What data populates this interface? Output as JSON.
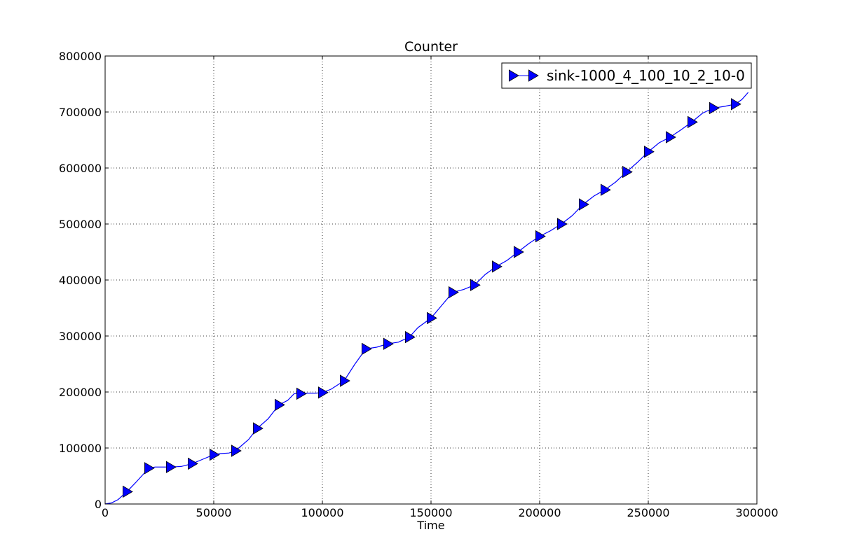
{
  "chart_data": {
    "type": "line",
    "title": "Counter",
    "xlabel": "Time",
    "ylabel": "",
    "xlim": [
      0,
      300000
    ],
    "ylim": [
      0,
      800000
    ],
    "xticks": [
      "0",
      "50000",
      "100000",
      "150000",
      "200000",
      "250000",
      "300000"
    ],
    "yticks": [
      "0",
      "100000",
      "200000",
      "300000",
      "400000",
      "500000",
      "600000",
      "700000",
      "800000"
    ],
    "grid": true,
    "legend_position": "top-right",
    "line_color": "#0000ff",
    "marker": "triangle-right",
    "series": [
      {
        "name": "sink-1000_4_100_10_2_10-0",
        "line": [
          [
            0,
            0
          ],
          [
            3000,
            2000
          ],
          [
            6000,
            8000
          ],
          [
            10000,
            22000
          ],
          [
            14000,
            38000
          ],
          [
            18000,
            55000
          ],
          [
            20000,
            64000
          ],
          [
            23000,
            66000
          ],
          [
            30000,
            66000
          ],
          [
            35000,
            67000
          ],
          [
            40000,
            72000
          ],
          [
            45000,
            80000
          ],
          [
            50000,
            88000
          ],
          [
            53000,
            90000
          ],
          [
            57000,
            91000
          ],
          [
            60000,
            95000
          ],
          [
            63000,
            105000
          ],
          [
            66000,
            115000
          ],
          [
            70000,
            135000
          ],
          [
            75000,
            152000
          ],
          [
            80000,
            177000
          ],
          [
            84000,
            185000
          ],
          [
            87000,
            197000
          ],
          [
            92000,
            198000
          ],
          [
            97000,
            198000
          ],
          [
            100000,
            199000
          ],
          [
            104000,
            205000
          ],
          [
            110000,
            220000
          ],
          [
            115000,
            250000
          ],
          [
            120000,
            277000
          ],
          [
            125000,
            280000
          ],
          [
            130000,
            286000
          ],
          [
            135000,
            289000
          ],
          [
            140000,
            298000
          ],
          [
            144000,
            315000
          ],
          [
            150000,
            332000
          ],
          [
            155000,
            355000
          ],
          [
            160000,
            378000
          ],
          [
            165000,
            383000
          ],
          [
            170000,
            391000
          ],
          [
            175000,
            410000
          ],
          [
            180000,
            424000
          ],
          [
            185000,
            435000
          ],
          [
            190000,
            450000
          ],
          [
            195000,
            465000
          ],
          [
            200000,
            478000
          ],
          [
            205000,
            488000
          ],
          [
            210000,
            500000
          ],
          [
            215000,
            515000
          ],
          [
            220000,
            535000
          ],
          [
            225000,
            550000
          ],
          [
            230000,
            561000
          ],
          [
            235000,
            575000
          ],
          [
            240000,
            593000
          ],
          [
            245000,
            610000
          ],
          [
            250000,
            629000
          ],
          [
            255000,
            645000
          ],
          [
            260000,
            655000
          ],
          [
            265000,
            668000
          ],
          [
            270000,
            682000
          ],
          [
            275000,
            698000
          ],
          [
            280000,
            707000
          ],
          [
            285000,
            710000
          ],
          [
            290000,
            714000
          ],
          [
            293000,
            722000
          ],
          [
            296000,
            735000
          ]
        ],
        "markers": [
          [
            10000,
            22000
          ],
          [
            20000,
            64000
          ],
          [
            30000,
            66000
          ],
          [
            40000,
            72000
          ],
          [
            50000,
            88000
          ],
          [
            60000,
            95000
          ],
          [
            70000,
            135000
          ],
          [
            80000,
            177000
          ],
          [
            90000,
            197000
          ],
          [
            100000,
            199000
          ],
          [
            110000,
            220000
          ],
          [
            120000,
            277000
          ],
          [
            130000,
            286000
          ],
          [
            140000,
            298000
          ],
          [
            150000,
            332000
          ],
          [
            160000,
            378000
          ],
          [
            170000,
            391000
          ],
          [
            180000,
            424000
          ],
          [
            190000,
            450000
          ],
          [
            200000,
            478000
          ],
          [
            210000,
            500000
          ],
          [
            220000,
            535000
          ],
          [
            230000,
            561000
          ],
          [
            240000,
            593000
          ],
          [
            250000,
            629000
          ],
          [
            260000,
            655000
          ],
          [
            270000,
            682000
          ],
          [
            280000,
            707000
          ],
          [
            290000,
            714000
          ]
        ]
      }
    ]
  }
}
